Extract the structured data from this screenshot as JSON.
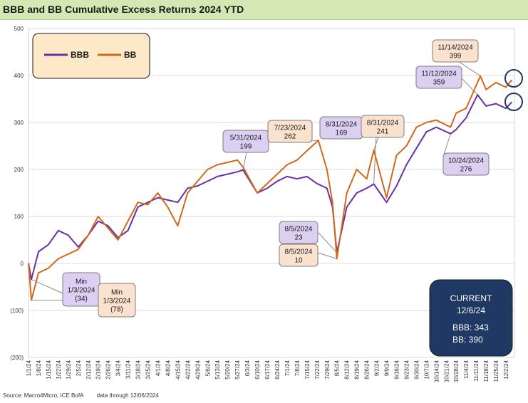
{
  "title": "BBB and BB Cumulative Excess Returns 2024 YTD",
  "footer": {
    "source": "Source: Macro4Micro, ICE BofA",
    "note": "data through 12/06/2024"
  },
  "colors": {
    "bbb": "#6b2fa8",
    "bb": "#d06a1a",
    "bbb_callout_fill": "#dcd0f2",
    "bb_callout_fill": "#fbe2cf",
    "legend_fill": "#fde9c7",
    "current_fill": "#203864",
    "title_bar": "#d4e8b4"
  },
  "legend": {
    "items": [
      {
        "label": "BBB",
        "color": "#6b2fa8"
      },
      {
        "label": "BB",
        "color": "#d06a1a"
      }
    ]
  },
  "current_box": {
    "heading": "CURRENT",
    "date": "12/6/24",
    "bbb": "BBB: 343",
    "bb": "BB: 390"
  },
  "callouts": [
    {
      "series": "BBB",
      "lines": [
        "Min",
        "1/3/2024",
        "(34)"
      ]
    },
    {
      "series": "BB",
      "lines": [
        "Min",
        "1/3/2024",
        "(78)"
      ]
    },
    {
      "series": "BBB",
      "lines": [
        "5/31/2024",
        "199"
      ]
    },
    {
      "series": "BB",
      "lines": [
        "7/23/2024",
        "262"
      ]
    },
    {
      "series": "BBB",
      "lines": [
        "8/31/2024",
        "169"
      ]
    },
    {
      "series": "BB",
      "lines": [
        "8/31/2024",
        "241"
      ]
    },
    {
      "series": "BBB",
      "lines": [
        "8/5/2024",
        "23"
      ]
    },
    {
      "series": "BB",
      "lines": [
        "8/5/2024",
        "10"
      ]
    },
    {
      "series": "BB",
      "lines": [
        "11/14/2024",
        "399"
      ]
    },
    {
      "series": "BBB",
      "lines": [
        "11/12/2024",
        "359"
      ]
    },
    {
      "series": "BBB",
      "lines": [
        "10/24/2024",
        "276"
      ]
    }
  ],
  "chart_data": {
    "type": "line",
    "title": "BBB and BB Cumulative Excess Returns 2024 YTD",
    "ylim": [
      -200,
      500
    ],
    "y_ticks": [
      500,
      400,
      300,
      200,
      100,
      0,
      -100,
      -200
    ],
    "y_tick_labels": [
      "500",
      "400",
      "300",
      "200",
      "100",
      "0",
      "(100)",
      "(200)"
    ],
    "x_tick_labels": [
      "1/1/24",
      "1/8/24",
      "1/15/24",
      "1/22/24",
      "1/29/24",
      "2/5/24",
      "2/12/24",
      "2/19/24",
      "2/26/24",
      "3/4/24",
      "3/11/24",
      "3/18/24",
      "3/25/24",
      "4/1/24",
      "4/8/24",
      "4/15/24",
      "4/22/24",
      "4/29/24",
      "5/6/24",
      "5/13/24",
      "5/20/24",
      "5/27/24",
      "6/3/24",
      "6/10/24",
      "6/17/24",
      "6/24/24",
      "7/1/24",
      "7/8/24",
      "7/15/24",
      "7/22/24",
      "7/29/24",
      "8/5/24",
      "8/12/24",
      "8/19/24",
      "8/26/24",
      "9/2/24",
      "9/9/24",
      "9/16/24",
      "9/23/24",
      "9/30/24",
      "10/7/24",
      "10/14/24",
      "10/21/24",
      "10/28/24",
      "11/4/24",
      "11/11/24",
      "11/18/24",
      "11/25/24",
      "12/2/24"
    ],
    "grid": "horizontal",
    "legend_position": "top-left",
    "series": [
      {
        "name": "BBB",
        "x": [
          "1/1/24",
          "1/3/24",
          "1/8/24",
          "1/15/24",
          "1/22/24",
          "1/29/24",
          "2/5/24",
          "2/12/24",
          "2/19/24",
          "2/26/24",
          "3/4/24",
          "3/11/24",
          "3/18/24",
          "3/25/24",
          "4/1/24",
          "4/8/24",
          "4/15/24",
          "4/22/24",
          "4/29/24",
          "5/6/24",
          "5/13/24",
          "5/20/24",
          "5/27/24",
          "5/31/24",
          "6/10/24",
          "6/17/24",
          "6/24/24",
          "7/1/24",
          "7/8/24",
          "7/15/24",
          "7/22/24",
          "7/29/24",
          "8/2/24",
          "8/5/24",
          "8/12/24",
          "8/19/24",
          "8/26/24",
          "8/31/24",
          "9/9/24",
          "9/16/24",
          "9/23/24",
          "9/30/24",
          "10/7/24",
          "10/14/24",
          "10/24/24",
          "10/28/24",
          "11/4/24",
          "11/12/24",
          "11/18/24",
          "11/25/24",
          "12/2/24",
          "12/6/24"
        ],
        "values": [
          0,
          -34,
          25,
          40,
          70,
          60,
          35,
          60,
          90,
          80,
          55,
          70,
          120,
          130,
          140,
          135,
          130,
          160,
          165,
          175,
          185,
          190,
          195,
          199,
          150,
          160,
          175,
          185,
          180,
          185,
          170,
          160,
          120,
          23,
          120,
          150,
          160,
          169,
          130,
          165,
          210,
          245,
          280,
          290,
          276,
          285,
          310,
          359,
          335,
          340,
          330,
          343
        ]
      },
      {
        "name": "BB",
        "x": [
          "1/1/24",
          "1/3/24",
          "1/8/24",
          "1/15/24",
          "1/22/24",
          "1/29/24",
          "2/5/24",
          "2/12/24",
          "2/19/24",
          "2/26/24",
          "3/4/24",
          "3/11/24",
          "3/18/24",
          "3/25/24",
          "4/1/24",
          "4/8/24",
          "4/15/24",
          "4/22/24",
          "4/29/24",
          "5/6/24",
          "5/13/24",
          "5/20/24",
          "5/27/24",
          "5/31/24",
          "6/10/24",
          "6/17/24",
          "6/24/24",
          "7/1/24",
          "7/8/24",
          "7/15/24",
          "7/23/24",
          "7/29/24",
          "8/2/24",
          "8/5/24",
          "8/12/24",
          "8/19/24",
          "8/26/24",
          "8/31/24",
          "9/9/24",
          "9/16/24",
          "9/23/24",
          "9/30/24",
          "10/7/24",
          "10/14/24",
          "10/24/24",
          "10/28/24",
          "11/4/24",
          "11/14/24",
          "11/18/24",
          "11/25/24",
          "12/2/24",
          "12/6/24"
        ],
        "values": [
          0,
          -78,
          -20,
          -10,
          10,
          20,
          30,
          60,
          100,
          75,
          50,
          90,
          130,
          125,
          150,
          120,
          80,
          150,
          175,
          200,
          210,
          215,
          220,
          205,
          150,
          170,
          190,
          210,
          220,
          240,
          262,
          200,
          130,
          10,
          150,
          200,
          180,
          241,
          140,
          230,
          250,
          290,
          300,
          305,
          290,
          320,
          330,
          399,
          370,
          385,
          375,
          390
        ]
      }
    ]
  }
}
